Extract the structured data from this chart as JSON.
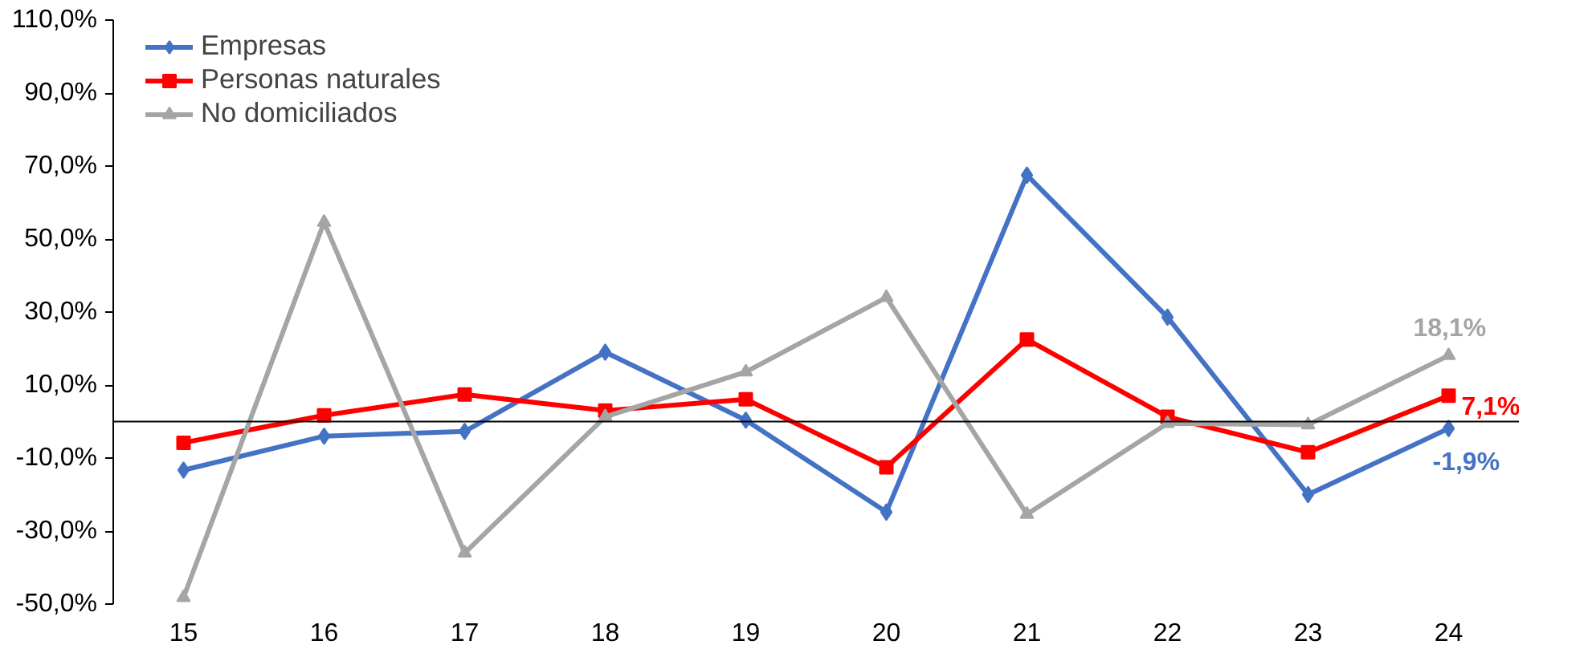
{
  "chart_data": {
    "type": "line",
    "categories": [
      "15",
      "16",
      "17",
      "18",
      "19",
      "20",
      "21",
      "22",
      "23",
      "24"
    ],
    "series": [
      {
        "name": "Empresas",
        "color": "#4472c4",
        "marker": "diamond",
        "values": [
          -13.3,
          -4,
          -2.7,
          19,
          0.4,
          -24.8,
          67.5,
          28.6,
          -20,
          -1.9
        ],
        "value_labels": [
          null,
          null,
          null,
          null,
          null,
          null,
          null,
          null,
          null,
          "-1,9%"
        ]
      },
      {
        "name": "Personas naturales",
        "color": "#ff0000",
        "marker": "square",
        "values": [
          -5.8,
          1.7,
          7.4,
          3,
          6.1,
          -12.5,
          22.5,
          1.3,
          -8.4,
          7.1
        ],
        "value_labels": [
          null,
          null,
          null,
          null,
          null,
          null,
          null,
          null,
          null,
          "7,1%"
        ]
      },
      {
        "name": "No domiciliados",
        "color": "#a5a5a5",
        "marker": "triangle",
        "values": [
          -48.2,
          54.6,
          -36,
          1.3,
          13.6,
          34,
          -25.4,
          -0.5,
          -0.9,
          18.1
        ],
        "value_labels": [
          null,
          null,
          null,
          null,
          null,
          null,
          null,
          null,
          null,
          "18,1%"
        ]
      }
    ],
    "ylim": [
      -50,
      110
    ],
    "yticks": [
      {
        "value": -50,
        "label": "-50,0%"
      },
      {
        "value": -30,
        "label": "-30,0%"
      },
      {
        "value": -10,
        "label": "-10,0%"
      },
      {
        "value": 10,
        "label": "10,0%"
      },
      {
        "value": 30,
        "label": "30,0%"
      },
      {
        "value": 50,
        "label": "50,0%"
      },
      {
        "value": 70,
        "label": "70,0%"
      },
      {
        "value": 90,
        "label": "90,0%"
      },
      {
        "value": 110,
        "label": "110,0%"
      }
    ],
    "ref_lines": [
      {
        "axis": "y",
        "value": 0,
        "color": "#000000"
      }
    ],
    "grid": false,
    "legend": "top left",
    "line_style": "solid"
  }
}
